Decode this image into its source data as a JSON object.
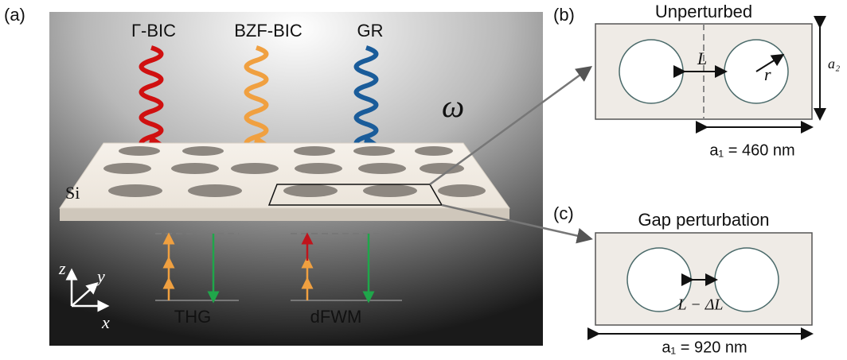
{
  "panel_a": {
    "label": "(a)",
    "beams": [
      "Γ-BIC",
      "BZF-BIC",
      "GR"
    ],
    "frequency": "ω",
    "material": "Si",
    "processes": [
      "THG",
      "dFWM"
    ],
    "axes": [
      "z",
      "y",
      "x"
    ]
  },
  "panel_b": {
    "label": "(b)",
    "title": "Unperturbed",
    "gap": "L",
    "radius": "r",
    "period_y": "a₂",
    "period_x": "a₁ = 460 nm"
  },
  "panel_c": {
    "label": "(c)",
    "title": "Gap perturbation",
    "gap": "L − ΔL",
    "period_x": "a₁ = 920 nm"
  }
}
